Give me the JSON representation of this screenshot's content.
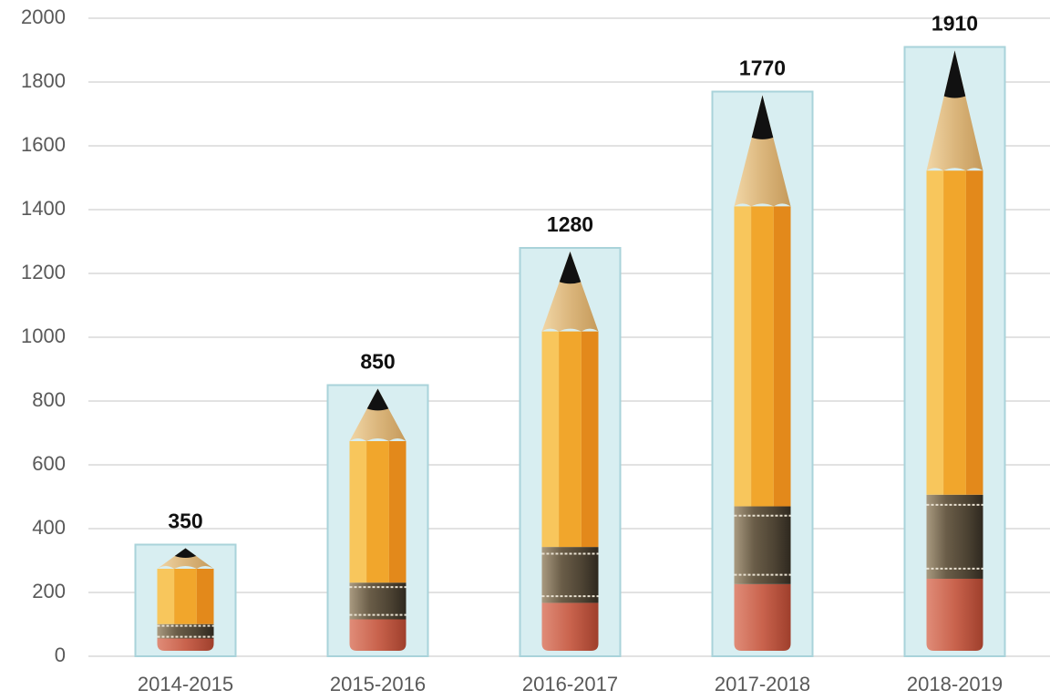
{
  "chart_data": {
    "type": "bar",
    "categories": [
      "2014-2015",
      "2015-2016",
      "2016-2017",
      "2017-2018",
      "2018-2019"
    ],
    "values": [
      350,
      850,
      1280,
      1770,
      1910
    ],
    "color": "#d8eef1",
    "ylim": [
      0,
      2000
    ],
    "yticks": [
      0,
      200,
      400,
      600,
      800,
      1000,
      1200,
      1400,
      1600,
      1800,
      2000
    ],
    "grid": true
  }
}
